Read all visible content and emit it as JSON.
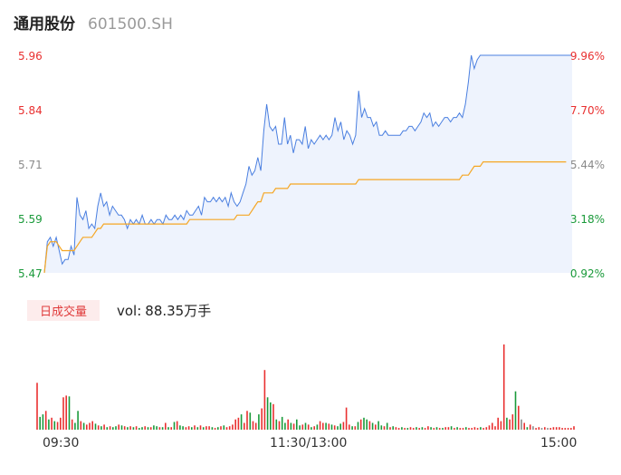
{
  "header": {
    "name": "通用股份",
    "code": "601500.SH"
  },
  "volume_panel": {
    "badge": "日成交量",
    "vol_prefix": "vol:",
    "vol_value": "88.35万手"
  },
  "colors": {
    "up": "#e93030",
    "down": "#1a9a3a",
    "neutral": "#8a8a8a",
    "price_line": "#4a7fe0",
    "avg_line": "#f5a623",
    "area_fill": "#eef3fd"
  },
  "chart_data": {
    "type": "line",
    "title": "",
    "ylim": [
      5.47,
      5.96
    ],
    "y_ticks_left": [
      "5.96",
      "5.84",
      "5.71",
      "5.59",
      "5.47"
    ],
    "y_ticks_right": [
      "9.96%",
      "7.70%",
      "5.44%",
      "3.18%",
      "0.92%"
    ],
    "x_ticks": [
      "09:30",
      "11:30/13:00",
      "15:00"
    ],
    "series": [
      {
        "role": "price",
        "values": [
          5.47,
          5.54,
          5.55,
          5.53,
          5.55,
          5.52,
          5.49,
          5.5,
          5.5,
          5.53,
          5.51,
          5.64,
          5.6,
          5.59,
          5.61,
          5.57,
          5.58,
          5.57,
          5.62,
          5.65,
          5.62,
          5.63,
          5.6,
          5.62,
          5.61,
          5.6,
          5.6,
          5.59,
          5.57,
          5.59,
          5.58,
          5.59,
          5.58,
          5.6,
          5.58,
          5.58,
          5.59,
          5.58,
          5.59,
          5.59,
          5.58,
          5.6,
          5.59,
          5.59,
          5.6,
          5.59,
          5.6,
          5.59,
          5.61,
          5.6,
          5.6,
          5.61,
          5.62,
          5.6,
          5.64,
          5.63,
          5.63,
          5.64,
          5.63,
          5.64,
          5.63,
          5.64,
          5.62,
          5.65,
          5.63,
          5.62,
          5.63,
          5.65,
          5.67,
          5.71,
          5.69,
          5.7,
          5.73,
          5.7,
          5.79,
          5.85,
          5.8,
          5.79,
          5.8,
          5.76,
          5.76,
          5.82,
          5.76,
          5.78,
          5.74,
          5.77,
          5.77,
          5.76,
          5.8,
          5.75,
          5.77,
          5.76,
          5.77,
          5.78,
          5.77,
          5.78,
          5.77,
          5.78,
          5.82,
          5.79,
          5.81,
          5.77,
          5.79,
          5.78,
          5.76,
          5.78,
          5.88,
          5.82,
          5.84,
          5.82,
          5.82,
          5.8,
          5.81,
          5.78,
          5.78,
          5.79,
          5.78,
          5.78,
          5.78,
          5.78,
          5.78,
          5.79,
          5.79,
          5.8,
          5.8,
          5.79,
          5.8,
          5.81,
          5.83,
          5.82,
          5.83,
          5.8,
          5.81,
          5.8,
          5.81,
          5.82,
          5.82,
          5.81,
          5.82,
          5.82,
          5.83,
          5.82,
          5.85,
          5.9,
          5.96,
          5.93,
          5.95,
          5.96,
          5.96,
          5.96,
          5.96,
          5.96,
          5.96,
          5.96,
          5.96,
          5.96,
          5.96,
          5.96,
          5.96,
          5.96,
          5.96,
          5.96,
          5.96,
          5.96,
          5.96,
          5.96,
          5.96,
          5.96,
          5.96,
          5.96,
          5.96,
          5.96,
          5.96,
          5.96,
          5.96,
          5.96,
          5.96,
          5.96,
          5.96
        ]
      },
      {
        "role": "average",
        "values": [
          5.47,
          5.53,
          5.54,
          5.54,
          5.54,
          5.53,
          5.52,
          5.52,
          5.52,
          5.52,
          5.52,
          5.53,
          5.54,
          5.55,
          5.55,
          5.55,
          5.55,
          5.56,
          5.57,
          5.57,
          5.58,
          5.58,
          5.58,
          5.58,
          5.58,
          5.58,
          5.58,
          5.58,
          5.58,
          5.58,
          5.58,
          5.58,
          5.58,
          5.58,
          5.58,
          5.58,
          5.58,
          5.58,
          5.58,
          5.58,
          5.58,
          5.58,
          5.58,
          5.58,
          5.58,
          5.58,
          5.58,
          5.58,
          5.58,
          5.59,
          5.59,
          5.59,
          5.59,
          5.59,
          5.59,
          5.59,
          5.59,
          5.59,
          5.59,
          5.59,
          5.59,
          5.59,
          5.59,
          5.59,
          5.59,
          5.6,
          5.6,
          5.6,
          5.6,
          5.6,
          5.61,
          5.62,
          5.63,
          5.63,
          5.65,
          5.65,
          5.65,
          5.65,
          5.66,
          5.66,
          5.66,
          5.66,
          5.66,
          5.67,
          5.67,
          5.67,
          5.67,
          5.67,
          5.67,
          5.67,
          5.67,
          5.67,
          5.67,
          5.67,
          5.67,
          5.67,
          5.67,
          5.67,
          5.67,
          5.67,
          5.67,
          5.67,
          5.67,
          5.67,
          5.67,
          5.67,
          5.68,
          5.68,
          5.68,
          5.68,
          5.68,
          5.68,
          5.68,
          5.68,
          5.68,
          5.68,
          5.68,
          5.68,
          5.68,
          5.68,
          5.68,
          5.68,
          5.68,
          5.68,
          5.68,
          5.68,
          5.68,
          5.68,
          5.68,
          5.68,
          5.68,
          5.68,
          5.68,
          5.68,
          5.68,
          5.68,
          5.68,
          5.68,
          5.68,
          5.68,
          5.68,
          5.69,
          5.69,
          5.69,
          5.7,
          5.71,
          5.71,
          5.71,
          5.72,
          5.72,
          5.72,
          5.72,
          5.72,
          5.72,
          5.72,
          5.72,
          5.72,
          5.72,
          5.72,
          5.72,
          5.72,
          5.72,
          5.72,
          5.72,
          5.72,
          5.72,
          5.72,
          5.72,
          5.72,
          5.72,
          5.72,
          5.72,
          5.72,
          5.72,
          5.72,
          5.72,
          5.72
        ]
      }
    ],
    "volume": {
      "values": [
        55,
        15,
        18,
        22,
        12,
        14,
        10,
        9,
        14,
        38,
        40,
        39,
        12,
        8,
        22,
        10,
        8,
        6,
        8,
        10,
        7,
        5,
        4,
        6,
        3,
        4,
        3,
        4,
        6,
        5,
        4,
        3,
        4,
        3,
        4,
        2,
        3,
        4,
        3,
        3,
        5,
        4,
        3,
        3,
        8,
        3,
        3,
        9,
        10,
        5,
        4,
        3,
        4,
        3,
        5,
        3,
        5,
        3,
        4,
        4,
        3,
        2,
        3,
        4,
        5,
        3,
        4,
        6,
        12,
        14,
        18,
        8,
        22,
        20,
        10,
        8,
        18,
        25,
        70,
        38,
        32,
        30,
        12,
        10,
        15,
        8,
        12,
        8,
        7,
        12,
        5,
        6,
        8,
        6,
        3,
        4,
        6,
        10,
        8,
        8,
        7,
        6,
        5,
        4,
        7,
        9,
        26,
        6,
        4,
        4,
        9,
        12,
        14,
        12,
        10,
        8,
        6,
        10,
        5,
        4,
        8,
        3,
        4,
        3,
        2,
        3,
        2,
        2,
        3,
        2,
        3,
        2,
        3,
        2,
        4,
        3,
        2,
        3,
        2,
        2,
        3,
        3,
        4,
        2,
        3,
        2,
        2,
        3,
        2,
        2,
        3,
        2,
        3,
        2,
        3,
        5,
        8,
        4,
        14,
        10,
        100,
        14,
        12,
        18,
        45,
        28,
        12,
        8,
        3,
        6,
        4,
        2,
        3,
        2,
        3,
        2,
        2,
        3,
        3,
        3,
        2,
        2,
        2,
        2,
        4
      ],
      "colors": [
        "up",
        "down",
        "down",
        "up",
        "down",
        "up",
        "down",
        "up",
        "up",
        "up",
        "up",
        "down",
        "up",
        "down",
        "down",
        "up",
        "down",
        "up",
        "up",
        "up",
        "down",
        "up",
        "down",
        "up",
        "down",
        "up",
        "down",
        "down",
        "up",
        "down",
        "up",
        "down",
        "up",
        "down",
        "up",
        "down",
        "down",
        "up",
        "down",
        "up",
        "down",
        "down",
        "up",
        "down",
        "up",
        "down",
        "up",
        "down",
        "up",
        "down",
        "down",
        "up",
        "up",
        "down",
        "up",
        "down",
        "up",
        "down",
        "up",
        "up",
        "down",
        "up",
        "down",
        "up",
        "down",
        "up",
        "up",
        "up",
        "up",
        "up",
        "down",
        "up",
        "up",
        "down",
        "up",
        "up",
        "down",
        "up",
        "up",
        "down",
        "down",
        "up",
        "down",
        "up",
        "down",
        "down",
        "up",
        "down",
        "up",
        "down",
        "down",
        "up",
        "down",
        "up",
        "down",
        "up",
        "down",
        "up",
        "up",
        "down",
        "up",
        "down",
        "up",
        "down",
        "down",
        "up",
        "up",
        "up",
        "down",
        "up",
        "down",
        "up",
        "down",
        "down",
        "up",
        "down",
        "up",
        "down",
        "down",
        "up",
        "down",
        "up",
        "down",
        "up",
        "up",
        "down",
        "up",
        "down",
        "up",
        "up",
        "down",
        "up",
        "down",
        "up",
        "up",
        "down",
        "up",
        "down",
        "up",
        "down",
        "up",
        "up",
        "down",
        "up",
        "down",
        "up",
        "up",
        "down",
        "up",
        "up",
        "up",
        "up",
        "down",
        "up",
        "up",
        "up",
        "up",
        "up",
        "up",
        "up",
        "up",
        "down",
        "up",
        "up",
        "down",
        "up",
        "neutral",
        "up",
        "down",
        "up",
        "neutral",
        "up",
        "up",
        "neutral",
        "up",
        "neutral",
        "up",
        "up",
        "up"
      ]
    }
  }
}
